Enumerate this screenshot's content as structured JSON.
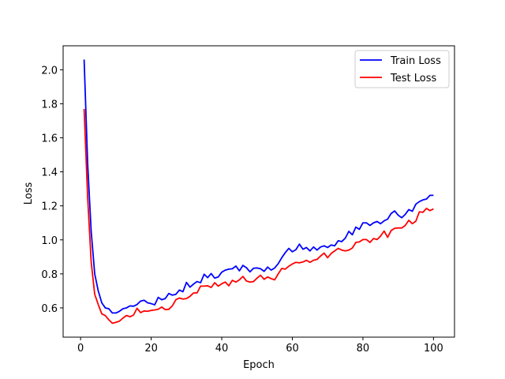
{
  "chart_data": {
    "type": "line",
    "xlabel": "Epoch",
    "ylabel": "Loss",
    "xlim": [
      -4.95,
      105.95
    ],
    "ylim": [
      0.428,
      2.141
    ],
    "xticks": [
      0,
      20,
      40,
      60,
      80,
      100
    ],
    "yticks": [
      0.6,
      0.8,
      1.0,
      1.2,
      1.4,
      1.6,
      1.8,
      2.0
    ],
    "xtick_labels": [
      "0",
      "20",
      "40",
      "60",
      "80",
      "100"
    ],
    "ytick_labels": [
      "0.6",
      "0.8",
      "1.0",
      "1.2",
      "1.4",
      "1.6",
      "1.8",
      "2.0"
    ],
    "grid": false,
    "legend_position": "upper right",
    "series": [
      {
        "name": "Train Loss",
        "color": "#0000ff",
        "x_start": 1,
        "values": [
          2.06,
          1.45,
          1.05,
          0.8,
          0.7,
          0.63,
          0.6,
          0.595,
          0.57,
          0.57,
          0.58,
          0.595,
          0.6,
          0.612,
          0.61,
          0.62,
          0.64,
          0.645,
          0.63,
          0.625,
          0.618,
          0.662,
          0.648,
          0.655,
          0.685,
          0.675,
          0.68,
          0.705,
          0.695,
          0.75,
          0.722,
          0.74,
          0.755,
          0.748,
          0.798,
          0.778,
          0.802,
          0.775,
          0.782,
          0.81,
          0.822,
          0.828,
          0.83,
          0.846,
          0.818,
          0.85,
          0.836,
          0.812,
          0.833,
          0.835,
          0.83,
          0.815,
          0.84,
          0.822,
          0.835,
          0.86,
          0.895,
          0.925,
          0.95,
          0.93,
          0.942,
          0.975,
          0.945,
          0.955,
          0.935,
          0.958,
          0.94,
          0.958,
          0.965,
          0.955,
          0.97,
          0.965,
          0.995,
          0.99,
          1.01,
          1.05,
          1.03,
          1.075,
          1.062,
          1.1,
          1.1,
          1.085,
          1.1,
          1.108,
          1.095,
          1.112,
          1.122,
          1.155,
          1.17,
          1.145,
          1.13,
          1.15,
          1.178,
          1.168,
          1.21,
          1.225,
          1.235,
          1.24,
          1.262,
          1.262
        ]
      },
      {
        "name": "Test Loss",
        "color": "#ff0000",
        "x_start": 1,
        "values": [
          1.77,
          1.25,
          0.87,
          0.68,
          0.62,
          0.565,
          0.555,
          0.53,
          0.51,
          0.515,
          0.522,
          0.54,
          0.555,
          0.548,
          0.558,
          0.598,
          0.572,
          0.582,
          0.58,
          0.585,
          0.588,
          0.592,
          0.605,
          0.59,
          0.592,
          0.612,
          0.648,
          0.658,
          0.652,
          0.655,
          0.668,
          0.688,
          0.688,
          0.728,
          0.728,
          0.73,
          0.72,
          0.748,
          0.728,
          0.742,
          0.752,
          0.73,
          0.762,
          0.752,
          0.765,
          0.785,
          0.758,
          0.752,
          0.755,
          0.775,
          0.792,
          0.768,
          0.782,
          0.772,
          0.765,
          0.8,
          0.832,
          0.828,
          0.845,
          0.858,
          0.868,
          0.865,
          0.87,
          0.88,
          0.868,
          0.88,
          0.885,
          0.905,
          0.922,
          0.895,
          0.92,
          0.935,
          0.95,
          0.94,
          0.935,
          0.94,
          0.952,
          0.985,
          0.988,
          1.002,
          1.002,
          0.985,
          1.008,
          1.002,
          1.022,
          1.052,
          1.015,
          1.055,
          1.068,
          1.07,
          1.07,
          1.085,
          1.115,
          1.095,
          1.11,
          1.165,
          1.162,
          1.185,
          1.172,
          1.182
        ]
      }
    ]
  }
}
